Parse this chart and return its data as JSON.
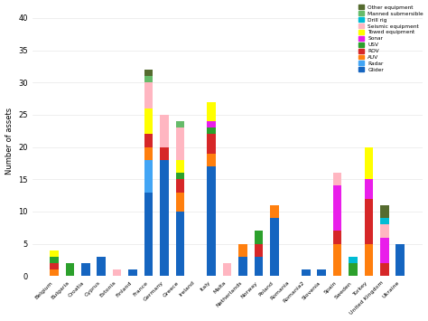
{
  "categories": [
    "Belgium",
    "Bulgaria",
    "Croatia",
    "Cyprus",
    "Estonia",
    "Finland",
    "France",
    "Germany",
    "Greece",
    "Ireland",
    "Italy",
    "Malta",
    "Netherlands",
    "Norway",
    "Poland",
    "Romania",
    "Romania2",
    "Slovenia",
    "Spain",
    "Sweden",
    "Turkey",
    "United Kingdom",
    "Ukraine"
  ],
  "legend_labels_bottom_to_top": [
    "Glider",
    "Radar",
    "AUV",
    "ROV",
    "USV",
    "Sonar",
    "Towed equipment",
    "Seismic equipment",
    "Drill rig",
    "Manned submersible",
    "Other equipment"
  ],
  "color_map": {
    "Glider": "#1565c0",
    "Radar": "#42a5f5",
    "AUV": "#ff7f0e",
    "ROV": "#d62728",
    "USV": "#2ca02c",
    "Sonar": "#e91eea",
    "Towed equipment": "#ffff00",
    "Seismic equipment": "#ffb6c1",
    "Drill rig": "#00bcd4",
    "Manned submersible": "#66bb6a",
    "Other equipment": "#556b2f"
  },
  "data": {
    "Glider": [
      0,
      0,
      2,
      3,
      0,
      1,
      13,
      18,
      10,
      0,
      17,
      0,
      3,
      3,
      9,
      0,
      1,
      1,
      0,
      0,
      0,
      0,
      5
    ],
    "Radar": [
      0,
      0,
      0,
      0,
      0,
      0,
      5,
      0,
      0,
      0,
      0,
      0,
      0,
      0,
      0,
      0,
      0,
      0,
      0,
      0,
      0,
      0,
      0
    ],
    "AUV": [
      1,
      0,
      0,
      0,
      0,
      0,
      2,
      0,
      3,
      0,
      2,
      0,
      2,
      0,
      2,
      0,
      0,
      0,
      5,
      0,
      5,
      0,
      0
    ],
    "ROV": [
      1,
      0,
      0,
      0,
      0,
      0,
      2,
      2,
      2,
      0,
      3,
      0,
      0,
      2,
      0,
      0,
      0,
      0,
      2,
      0,
      7,
      2,
      0
    ],
    "USV": [
      1,
      2,
      0,
      0,
      0,
      0,
      0,
      0,
      1,
      0,
      1,
      0,
      0,
      2,
      0,
      0,
      0,
      0,
      0,
      2,
      0,
      0,
      0
    ],
    "Sonar": [
      0,
      0,
      0,
      0,
      0,
      0,
      0,
      0,
      0,
      0,
      1,
      0,
      0,
      0,
      0,
      0,
      0,
      0,
      7,
      0,
      3,
      4,
      0
    ],
    "Towed equipment": [
      1,
      0,
      0,
      0,
      0,
      0,
      4,
      0,
      2,
      0,
      3,
      0,
      0,
      0,
      0,
      0,
      0,
      0,
      0,
      0,
      5,
      0,
      0
    ],
    "Seismic equipment": [
      0,
      0,
      0,
      0,
      1,
      0,
      4,
      5,
      5,
      0,
      0,
      2,
      0,
      0,
      0,
      0,
      0,
      0,
      2,
      0,
      0,
      2,
      0
    ],
    "Drill rig": [
      0,
      0,
      0,
      0,
      0,
      0,
      0,
      0,
      0,
      0,
      0,
      0,
      0,
      0,
      0,
      0,
      0,
      0,
      0,
      1,
      0,
      1,
      0
    ],
    "Manned submersible": [
      0,
      0,
      0,
      0,
      0,
      0,
      1,
      0,
      1,
      0,
      0,
      0,
      0,
      0,
      0,
      0,
      0,
      0,
      0,
      0,
      0,
      0,
      0
    ],
    "Other equipment": [
      0,
      0,
      0,
      0,
      0,
      0,
      1,
      0,
      0,
      0,
      0,
      0,
      0,
      0,
      0,
      0,
      0,
      0,
      0,
      0,
      0,
      2,
      0
    ]
  },
  "ylabel": "Number of assets",
  "ylim": [
    0,
    42
  ],
  "yticks": [
    0,
    5,
    10,
    15,
    20,
    25,
    30,
    35,
    40
  ],
  "background_color": "#ffffff",
  "grid_color": "#e8e8e8"
}
